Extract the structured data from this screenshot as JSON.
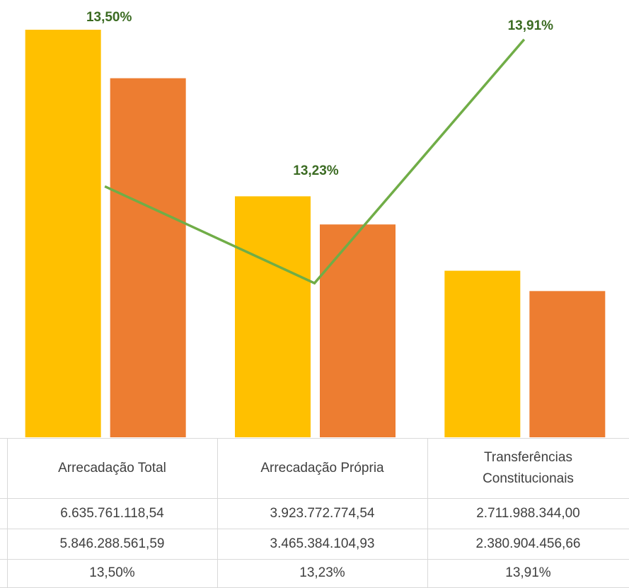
{
  "chart_data": {
    "type": "bar",
    "categories": [
      "Arrecadação Total",
      "Arrecadação Própria",
      "Transferências Constitucionais"
    ],
    "ylim": [
      0,
      7120000000
    ],
    "y2lim": [
      12.8,
      14.02
    ],
    "series": [
      {
        "color": "#FFC000",
        "values": [
          6635761118.54,
          3923772774.54,
          2711988344.0
        ],
        "value_labels": [
          "6.635.761.118,54",
          "3.923.772.774,54",
          "2.711.988.344,00"
        ]
      },
      {
        "color": "#ED7D31",
        "values": [
          5846288561.59,
          3465384104.93,
          2380904456.66
        ],
        "value_labels": [
          "5.846.288.561,59",
          "3.465.384.104,93",
          "2.380.904.456,66"
        ]
      },
      {
        "type": "line",
        "axis": "y2",
        "color": "#70AD47",
        "values": [
          13.5,
          13.23,
          13.91
        ],
        "value_labels": [
          "13,50%",
          "13,23%",
          "13,91%"
        ]
      }
    ]
  }
}
